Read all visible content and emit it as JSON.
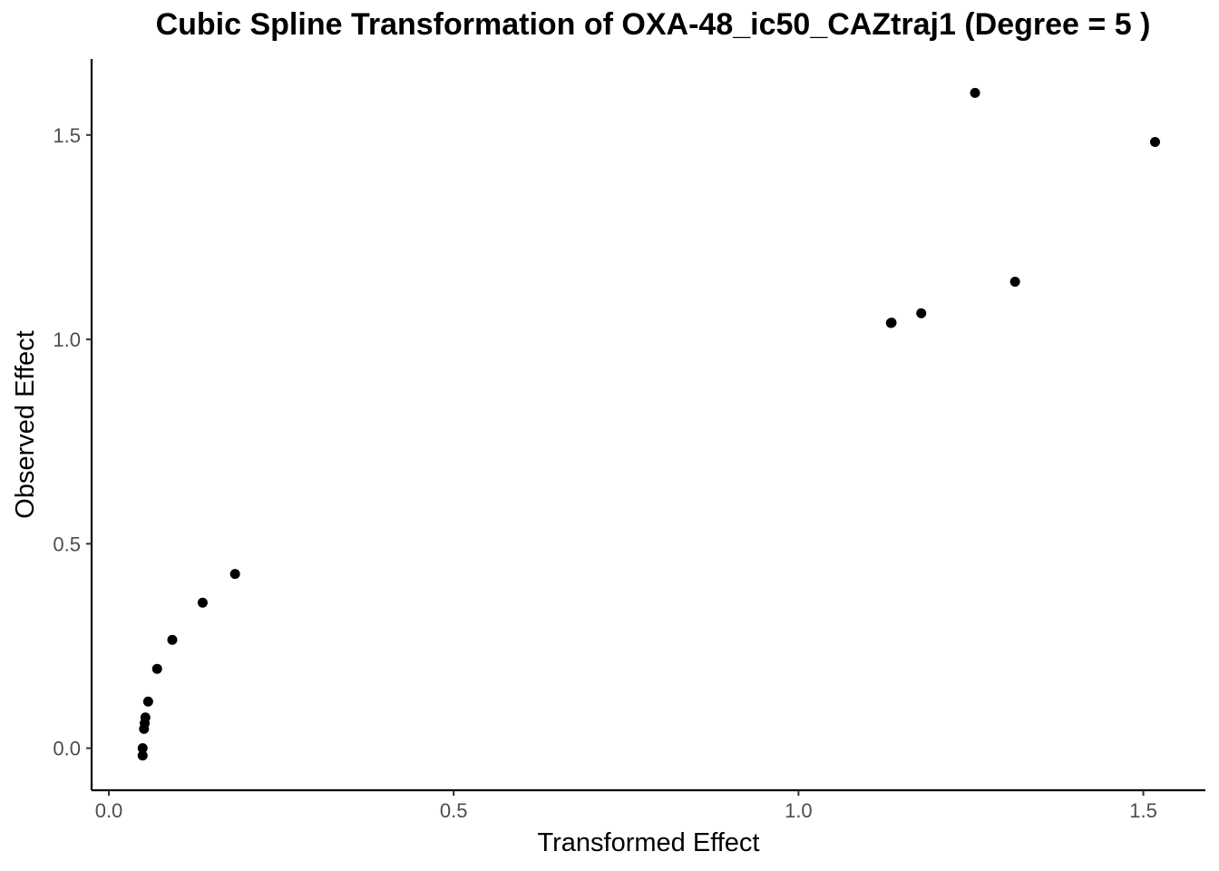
{
  "chart_data": {
    "type": "scatter",
    "title": "Cubic Spline Transformation of OXA-48_ic50_CAZtraj1 (Degree = 5 )",
    "xlabel": "Transformed Effect",
    "ylabel": "Observed Effect",
    "xlim": [
      -0.025,
      1.59
    ],
    "ylim": [
      -0.103,
      1.686
    ],
    "xticks": [
      0.0,
      0.5,
      1.0,
      1.5
    ],
    "xtick_labels": [
      "0.0",
      "0.5",
      "1.0",
      "1.5"
    ],
    "yticks": [
      0.0,
      0.5,
      1.0,
      1.5
    ],
    "ytick_labels": [
      "0.0",
      "0.5",
      "1.0",
      "1.5"
    ],
    "grid": false,
    "legend": "none",
    "point_color": "#000000",
    "points": [
      {
        "x": 0.049,
        "y": -0.018
      },
      {
        "x": 0.049,
        "y": 0.0
      },
      {
        "x": 0.051,
        "y": 0.047
      },
      {
        "x": 0.052,
        "y": 0.061
      },
      {
        "x": 0.053,
        "y": 0.075
      },
      {
        "x": 0.057,
        "y": 0.114
      },
      {
        "x": 0.07,
        "y": 0.194
      },
      {
        "x": 0.092,
        "y": 0.265
      },
      {
        "x": 0.136,
        "y": 0.356
      },
      {
        "x": 0.183,
        "y": 0.426
      },
      {
        "x": 1.134,
        "y": 1.04
      },
      {
        "x": 1.135,
        "y": 1.041
      },
      {
        "x": 1.178,
        "y": 1.064
      },
      {
        "x": 1.256,
        "y": 1.603
      },
      {
        "x": 1.314,
        "y": 1.141
      },
      {
        "x": 1.517,
        "y": 1.483
      }
    ]
  }
}
